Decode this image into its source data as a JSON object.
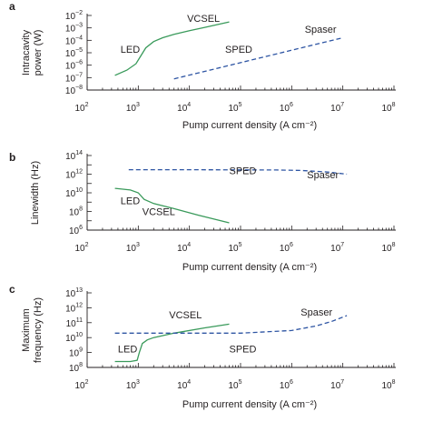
{
  "chart_data": [
    {
      "panel": "a",
      "type": "line",
      "xlabel": "Pump current density (A cm⁻²)",
      "ylabel": "Intracavity power (W)",
      "xscale": "log",
      "yscale": "log",
      "xlim": [
        100,
        100000000
      ],
      "ylim": [
        1e-08,
        0.01
      ],
      "x_ticks": [
        {
          "base": "10",
          "exp": "2"
        },
        {
          "base": "10",
          "exp": "3"
        },
        {
          "base": "10",
          "exp": "4"
        },
        {
          "base": "10",
          "exp": "5"
        },
        {
          "base": "10",
          "exp": "6"
        },
        {
          "base": "10",
          "exp": "7"
        },
        {
          "base": "10",
          "exp": "8"
        }
      ],
      "y_ticks": [
        {
          "base": "10",
          "exp": "−8"
        },
        {
          "base": "10",
          "exp": "−7"
        },
        {
          "base": "10",
          "exp": "−6"
        },
        {
          "base": "10",
          "exp": "−5"
        },
        {
          "base": "10",
          "exp": "−4"
        },
        {
          "base": "10",
          "exp": "−3"
        },
        {
          "base": "10",
          "exp": "−2"
        }
      ],
      "grid": false,
      "series": [
        {
          "label": "LED / VCSEL",
          "style": "solid",
          "color": "#3a9a5b",
          "x": [
            350,
            600,
            900,
            1100,
            1400,
            2000,
            3000,
            5000,
            10000,
            20000,
            60000
          ],
          "y": [
            1.5e-07,
            4e-07,
            1.3e-06,
            5e-06,
            2.5e-05,
            8e-05,
            0.00016,
            0.0003,
            0.0006,
            0.0011,
            0.003
          ]
        },
        {
          "label": "SPED / Spaser",
          "style": "dashed",
          "color": "#2e55a3",
          "x": [
            5000,
            10000000
          ],
          "y": [
            8e-08,
            0.00016
          ]
        }
      ],
      "annotations": [
        {
          "text": "LED",
          "x": 450,
          "y": 1e-05
        },
        {
          "text": "VCSEL",
          "x": 9000,
          "y": 0.003
        },
        {
          "text": "SPED",
          "x": 50000,
          "y": 1e-05
        },
        {
          "text": "Spaser",
          "x": 1800000,
          "y": 0.0004
        }
      ]
    },
    {
      "panel": "b",
      "type": "line",
      "xlabel": "Pump current density (A cm⁻²)",
      "ylabel": "Linewidth (Hz)",
      "xscale": "log",
      "yscale": "log",
      "xlim": [
        100,
        100000000
      ],
      "ylim": [
        1000000,
        100000000000000
      ],
      "x_ticks": [
        {
          "base": "10",
          "exp": "2"
        },
        {
          "base": "10",
          "exp": "3"
        },
        {
          "base": "10",
          "exp": "4"
        },
        {
          "base": "10",
          "exp": "5"
        },
        {
          "base": "10",
          "exp": "6"
        },
        {
          "base": "10",
          "exp": "7"
        },
        {
          "base": "10",
          "exp": "8"
        }
      ],
      "y_ticks": [
        {
          "base": "10",
          "exp": "6"
        },
        {
          "base": "10",
          "exp": "8"
        },
        {
          "base": "10",
          "exp": "10"
        },
        {
          "base": "10",
          "exp": "12"
        },
        {
          "base": "10",
          "exp": "14"
        }
      ],
      "grid": false,
      "series": [
        {
          "label": "LED / VCSEL",
          "style": "solid",
          "color": "#3a9a5b",
          "x": [
            350,
            700,
            1000,
            1300,
            2000,
            5000,
            15000,
            60000
          ],
          "y": [
            30000000000,
            20000000000,
            10000000000,
            2000000000,
            700000000,
            200000000,
            40000000,
            6000000
          ]
        },
        {
          "label": "SPED / Spaser",
          "style": "dashed",
          "color": "#2e55a3",
          "x": [
            650,
            10000,
            100000,
            500000,
            1500000,
            5000000,
            12000000
          ],
          "y": [
            3000000000000,
            3000000000000,
            2900000000000,
            2800000000000,
            2500000000000,
            1700000000000,
            1000000000000
          ]
        }
      ],
      "annotations": [
        {
          "text": "SPED",
          "x": 60000,
          "y": 1000000000000
        },
        {
          "text": "Spaser",
          "x": 2000000,
          "y": 350000000000
        },
        {
          "text": "LED",
          "x": 450,
          "y": 600000000
        },
        {
          "text": "VCSEL",
          "x": 1200,
          "y": 40000000
        }
      ]
    },
    {
      "panel": "c",
      "type": "line",
      "xlabel": "Pump current density (A cm⁻²)",
      "ylabel": "Maximum frequency (Hz)",
      "xscale": "log",
      "yscale": "log",
      "xlim": [
        100,
        100000000
      ],
      "ylim": [
        100000000,
        10000000000000
      ],
      "x_ticks": [
        {
          "base": "10",
          "exp": "2"
        },
        {
          "base": "10",
          "exp": "3"
        },
        {
          "base": "10",
          "exp": "4"
        },
        {
          "base": "10",
          "exp": "5"
        },
        {
          "base": "10",
          "exp": "6"
        },
        {
          "base": "10",
          "exp": "7"
        },
        {
          "base": "10",
          "exp": "8"
        }
      ],
      "y_ticks": [
        {
          "base": "10",
          "exp": "8"
        },
        {
          "base": "10",
          "exp": "9"
        },
        {
          "base": "10",
          "exp": "10"
        },
        {
          "base": "10",
          "exp": "11"
        },
        {
          "base": "10",
          "exp": "12"
        },
        {
          "base": "10",
          "exp": "13"
        }
      ],
      "grid": false,
      "series": [
        {
          "label": "LED / VCSEL",
          "style": "solid",
          "color": "#3a9a5b",
          "x": [
            350,
            700,
            950,
            1050,
            1200,
            1500,
            2000,
            5000,
            20000,
            60000
          ],
          "y": [
            250000000,
            250000000,
            300000000,
            1000000000,
            4000000000,
            7000000000,
            10000000000,
            20000000000,
            45000000000,
            80000000000
          ]
        },
        {
          "label": "SPED / Spaser",
          "style": "dashed",
          "color": "#2e55a3",
          "x": [
            350,
            5000,
            100000,
            1000000,
            3000000,
            6000000,
            12000000
          ],
          "y": [
            20000000000,
            20000000000,
            20000000000,
            30000000000,
            60000000000,
            120000000000,
            300000000000
          ]
        }
      ],
      "annotations": [
        {
          "text": "VCSEL",
          "x": 4000,
          "y": 200000000000
        },
        {
          "text": "Spaser",
          "x": 1500000,
          "y": 300000000000
        },
        {
          "text": "LED",
          "x": 400,
          "y": 1000000000
        },
        {
          "text": "SPED",
          "x": 60000,
          "y": 1000000000
        }
      ]
    }
  ]
}
